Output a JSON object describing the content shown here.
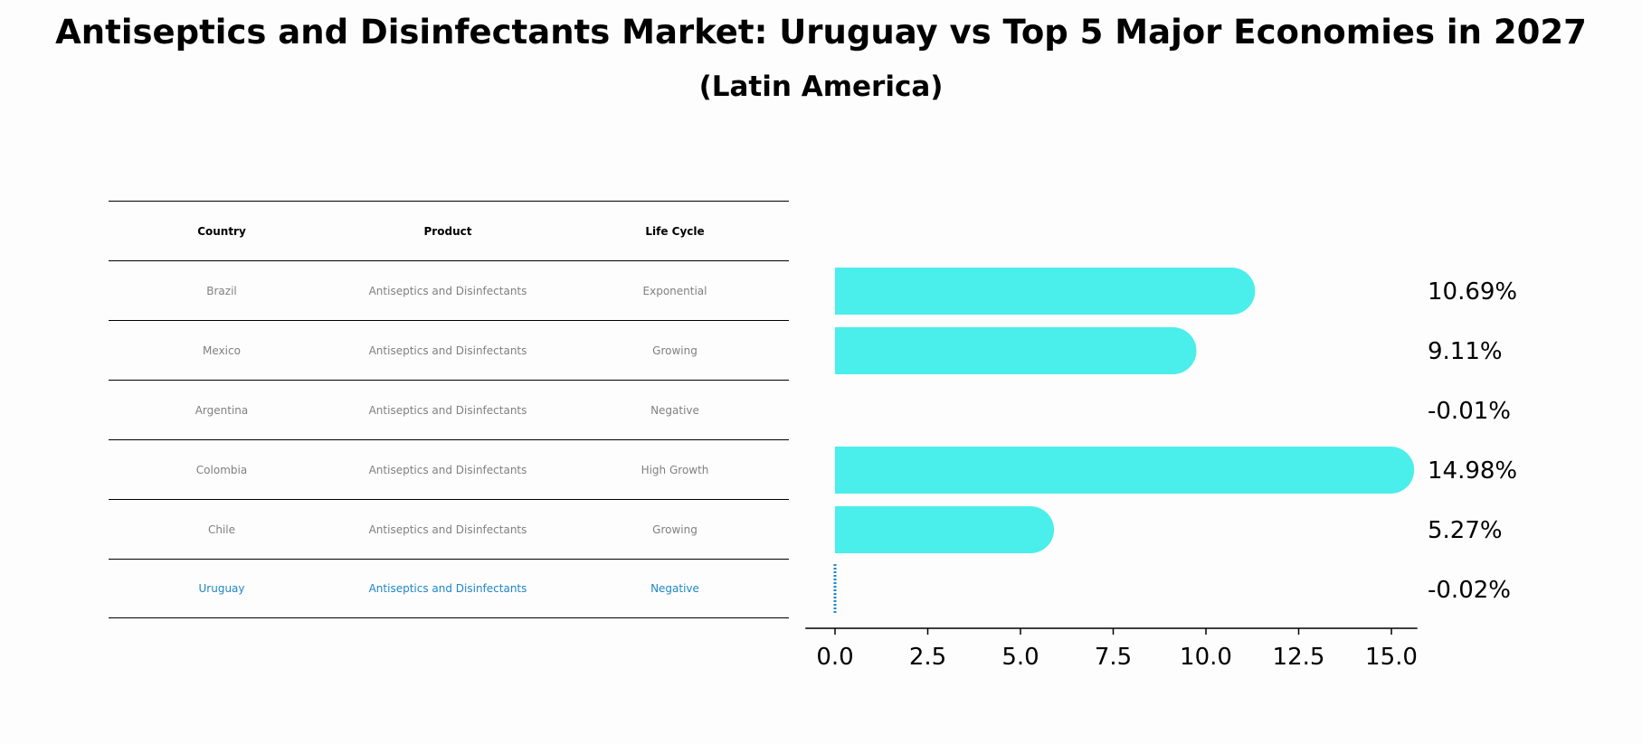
{
  "title": "Antiseptics and Disinfectants Market: Uruguay vs Top 5 Major Economies in 2027",
  "subtitle": "(Latin America)",
  "table": {
    "headers": [
      "Country",
      "Product",
      "Life Cycle"
    ],
    "rows": [
      {
        "country": "Brazil",
        "product": "Antiseptics and Disinfectants",
        "life_cycle": "Exponential"
      },
      {
        "country": "Mexico",
        "product": "Antiseptics and Disinfectants",
        "life_cycle": "Growing"
      },
      {
        "country": "Argentina",
        "product": "Antiseptics and Disinfectants",
        "life_cycle": "Negative"
      },
      {
        "country": "Colombia",
        "product": "Antiseptics and Disinfectants",
        "life_cycle": "High Growth"
      },
      {
        "country": "Chile",
        "product": "Antiseptics and Disinfectants",
        "life_cycle": "Growing"
      },
      {
        "country": "Uruguay",
        "product": "Antiseptics and Disinfectants",
        "life_cycle": "Negative"
      }
    ]
  },
  "chart_data": {
    "type": "bar",
    "orientation": "horizontal",
    "categories": [
      "Brazil",
      "Mexico",
      "Argentina",
      "Colombia",
      "Chile",
      "Uruguay"
    ],
    "values": [
      10.69,
      9.11,
      -0.01,
      14.98,
      5.27,
      -0.02
    ],
    "value_labels": [
      "10.69%",
      "9.11%",
      "-0.01%",
      "14.98%",
      "5.27%",
      "-0.02%"
    ],
    "xticks": [
      0.0,
      2.5,
      5.0,
      7.5,
      10.0,
      12.5,
      15.0
    ],
    "xtick_labels": [
      "0.0",
      "2.5",
      "5.0",
      "7.5",
      "10.0",
      "12.5",
      "15.0"
    ],
    "xlim": [
      -0.8,
      15.7
    ],
    "highlight": "Uruguay",
    "bar_color": "#4aeeea",
    "highlight_color": "#1f86c9"
  }
}
